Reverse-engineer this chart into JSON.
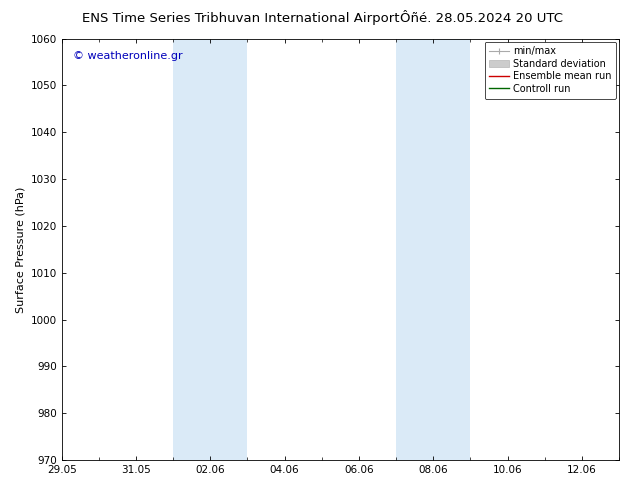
{
  "title_left": "ENS Time Series Tribhuvan International Airport",
  "title_right": "Ôñé. 28.05.2024 20 UTC",
  "ylabel": "Surface Pressure (hPa)",
  "ylim": [
    970,
    1060
  ],
  "yticks": [
    970,
    980,
    990,
    1000,
    1010,
    1020,
    1030,
    1040,
    1050,
    1060
  ],
  "xtick_labels": [
    "29.05",
    "31.05",
    "02.06",
    "04.06",
    "06.06",
    "08.06",
    "10.06",
    "12.06"
  ],
  "xtick_positions": [
    0,
    2,
    4,
    6,
    8,
    10,
    12,
    14
  ],
  "xlim": [
    0,
    15
  ],
  "shaded_bands": [
    {
      "x_start": 3.0,
      "x_end": 5.0
    },
    {
      "x_start": 9.0,
      "x_end": 11.0
    }
  ],
  "shade_color": "#daeaf7",
  "watermark_text": "© weatheronline.gr",
  "watermark_color": "#0000bb",
  "legend_labels": [
    "min/max",
    "Standard deviation",
    "Ensemble mean run",
    "Controll run"
  ],
  "bg_color": "#ffffff",
  "title_fontsize": 9.5,
  "axis_label_fontsize": 8,
  "tick_fontsize": 7.5,
  "watermark_fontsize": 8,
  "legend_fontsize": 7
}
